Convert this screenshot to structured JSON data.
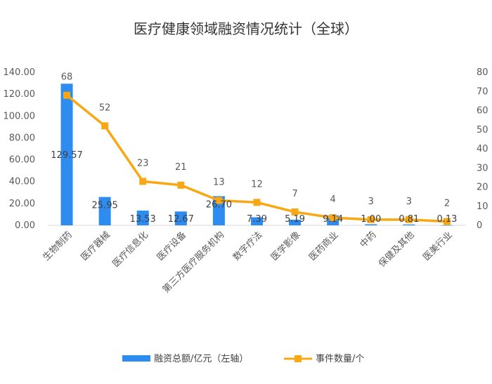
{
  "chart_data": {
    "type": "bar",
    "title": "医疗健康领域融资情况统计（全球）",
    "categories": [
      "生物制药",
      "医疗器械",
      "医疗信息化",
      "医疗设备",
      "第三方医疗服务机构",
      "数字疗法",
      "医学影像",
      "医药商业",
      "中药",
      "保健及其他",
      "医美行业"
    ],
    "series": [
      {
        "name": "融资总额/亿元（左轴）",
        "type": "bar",
        "axis": "left",
        "color": "#2E8BEF",
        "values": [
          129.57,
          25.95,
          13.53,
          12.67,
          26.7,
          7.39,
          5.19,
          9.14,
          1.0,
          0.81,
          0.13
        ],
        "labels": [
          "129.57",
          "25.95",
          "13.53",
          "12.67",
          "26.70",
          "7.39",
          "5.19",
          "9.14",
          "1.00",
          "0.81",
          "0.13"
        ]
      },
      {
        "name": "事件数量/个",
        "type": "line",
        "axis": "right",
        "color": "#F9A814",
        "values": [
          68,
          52,
          23,
          21,
          13,
          12,
          7,
          4,
          3,
          3,
          2
        ],
        "labels": [
          "68",
          "52",
          "23",
          "21",
          "13",
          "12",
          "7",
          "4",
          "3",
          "3",
          "2"
        ]
      }
    ],
    "y_left": {
      "min": 0,
      "max": 140,
      "ticks": [
        "0.00",
        "20.00",
        "40.00",
        "60.00",
        "80.00",
        "100.00",
        "120.00",
        "140.00"
      ]
    },
    "y_right": {
      "min": 0,
      "max": 80,
      "ticks": [
        "0",
        "10",
        "20",
        "30",
        "40",
        "50",
        "60",
        "70",
        "80"
      ]
    },
    "grid": false,
    "legend_position": "bottom"
  }
}
